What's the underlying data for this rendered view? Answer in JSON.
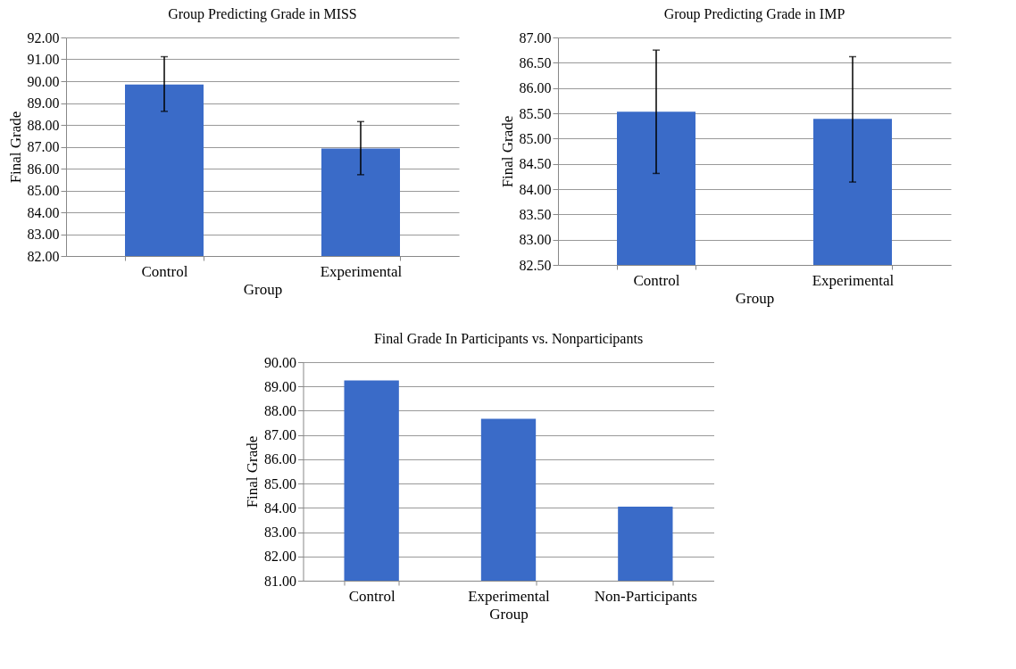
{
  "chart_data": [
    {
      "type": "bar",
      "title": "Group Predicting Grade in MISS",
      "xlabel": "Group",
      "ylabel": "Final Grade",
      "categories": [
        "Control",
        "Experimental"
      ],
      "values": [
        89.85,
        86.92
      ],
      "errors": [
        [
          88.62,
          91.12
        ],
        [
          85.72,
          88.15
        ]
      ],
      "color": "#3a6bc8",
      "ylim": [
        82,
        92
      ],
      "yticks": [
        {
          "value": 82,
          "label": "82.00"
        },
        {
          "value": 83,
          "label": "83.00"
        },
        {
          "value": 84,
          "label": "84.00"
        },
        {
          "value": 85,
          "label": "85.00"
        },
        {
          "value": 86,
          "label": "86.00"
        },
        {
          "value": 87,
          "label": "87.00"
        },
        {
          "value": 88,
          "label": "88.00"
        },
        {
          "value": 89,
          "label": "89.00"
        },
        {
          "value": 90,
          "label": "90.00"
        },
        {
          "value": 91,
          "label": "91.00"
        },
        {
          "value": 92,
          "label": "92.00"
        }
      ],
      "grid": "y"
    },
    {
      "type": "bar",
      "title": "Group Predicting Grade in IMP",
      "xlabel": "Group",
      "ylabel": "Final Grade",
      "categories": [
        "Control",
        "Experimental"
      ],
      "values": [
        85.53,
        85.39
      ],
      "errors": [
        [
          84.31,
          86.75
        ],
        [
          84.14,
          86.62
        ]
      ],
      "color": "#3a6bc8",
      "ylim": [
        82.5,
        87
      ],
      "yticks": [
        {
          "value": 82.5,
          "label": "82.50"
        },
        {
          "value": 83,
          "label": "83.00"
        },
        {
          "value": 83.5,
          "label": "83.50"
        },
        {
          "value": 84,
          "label": "84.00"
        },
        {
          "value": 84.5,
          "label": "84.50"
        },
        {
          "value": 85,
          "label": "85.00"
        },
        {
          "value": 85.5,
          "label": "85.50"
        },
        {
          "value": 86,
          "label": "86.00"
        },
        {
          "value": 86.5,
          "label": "86.50"
        },
        {
          "value": 87,
          "label": "87.00"
        }
      ],
      "grid": "y"
    },
    {
      "type": "bar",
      "title": "Final Grade In Participants vs. Nonparticipants",
      "xlabel": "Group",
      "ylabel": "Final Grade",
      "categories": [
        "Control",
        "Experimental",
        "Non-Participants"
      ],
      "values": [
        89.25,
        87.67,
        84.05
      ],
      "color": "#3a6bc8",
      "ylim": [
        81,
        90
      ],
      "yticks": [
        {
          "value": 81,
          "label": "81.00"
        },
        {
          "value": 82,
          "label": "82.00"
        },
        {
          "value": 83,
          "label": "83.00"
        },
        {
          "value": 84,
          "label": "84.00"
        },
        {
          "value": 85,
          "label": "85.00"
        },
        {
          "value": 86,
          "label": "86.00"
        },
        {
          "value": 87,
          "label": "87.00"
        },
        {
          "value": 88,
          "label": "88.00"
        },
        {
          "value": 89,
          "label": "89.00"
        },
        {
          "value": 90,
          "label": "90.00"
        }
      ],
      "grid": "y"
    }
  ]
}
